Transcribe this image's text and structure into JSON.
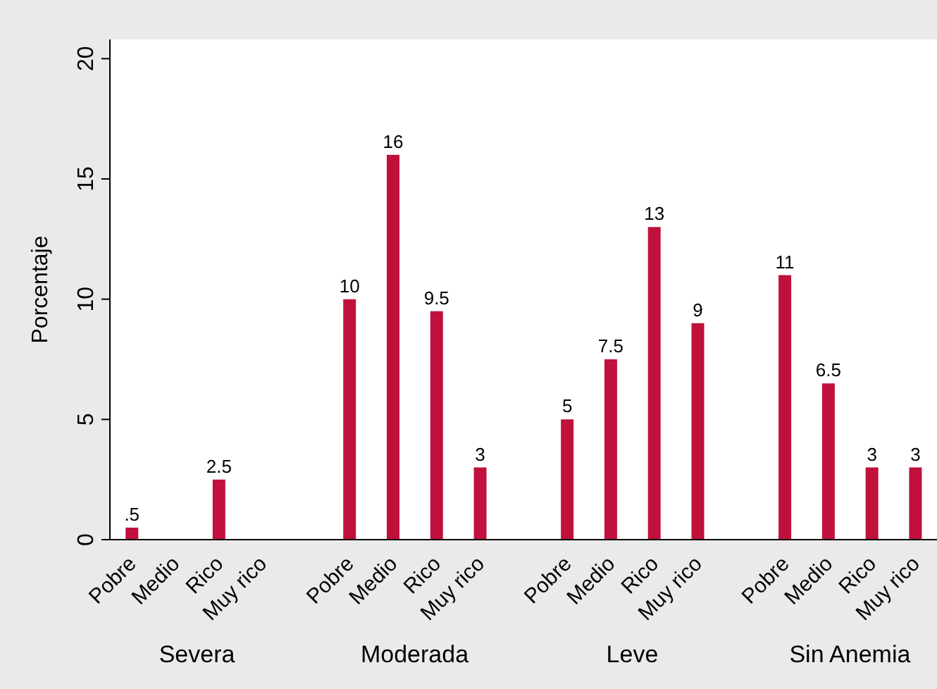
{
  "chart_data": {
    "type": "bar",
    "ylabel": "Porcentaje",
    "categories": [
      "Pobre",
      "Medio",
      "Rico",
      "Muy rico",
      "Pobre",
      "Medio",
      "Rico",
      "Muy rico",
      "Pobre",
      "Medio",
      "Rico",
      "Muy rico",
      "Pobre",
      "Medio",
      "Rico",
      "Muy rico"
    ],
    "values": [
      0.5,
      null,
      2.5,
      null,
      10,
      16,
      9.5,
      3,
      5,
      7.5,
      13,
      9,
      11,
      6.5,
      3,
      3
    ],
    "value_labels": [
      ".5",
      null,
      "2.5",
      null,
      "10",
      "16",
      "9.5",
      "3",
      "5",
      "7.5",
      "13",
      "9",
      "11",
      "6.5",
      "3",
      "3"
    ],
    "color": "#c0103c",
    "ylim": [
      0,
      20.8
    ],
    "yticks": [
      0,
      5,
      10,
      15,
      20
    ],
    "annotations": [
      "Severa",
      "Moderada",
      "Leve",
      "Sin Anemia"
    ]
  }
}
